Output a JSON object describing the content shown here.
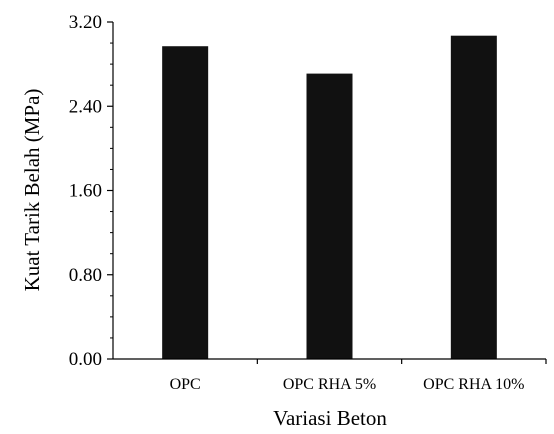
{
  "chart_data": {
    "type": "bar",
    "categories": [
      "OPC",
      "OPC RHA 5%",
      "OPC RHA 10%"
    ],
    "values": [
      2.97,
      2.71,
      3.07
    ],
    "xlabel": "Variasi Beton",
    "ylabel": "Kuat Tarik Belah (MPa)",
    "ylim": [
      0,
      3.2
    ],
    "yticks": [
      "0.00",
      "0.80",
      "1.60",
      "2.40",
      "3.20"
    ],
    "bar_color": "#111111",
    "grid": false,
    "legend": "none"
  }
}
